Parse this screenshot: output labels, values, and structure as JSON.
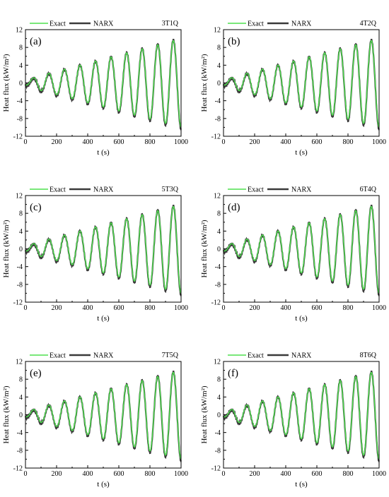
{
  "legend": {
    "exact_label": "Exact",
    "narx_label": "NARX",
    "exact_color": "#4fe04f",
    "narx_color": "#3a3a3a"
  },
  "chart_data": [
    {
      "type": "line",
      "panel_label": "(a)",
      "case": "3T1Q",
      "xlabel": "t (s)",
      "ylabel": "Heat flux (kW/m²)",
      "xlim": [
        0,
        1000
      ],
      "ylim": [
        -12,
        12
      ],
      "xticks": [
        0,
        200,
        400,
        600,
        800,
        1000
      ],
      "yticks": [
        -12,
        -8,
        -4,
        0,
        4,
        8,
        12
      ],
      "series": [
        {
          "name": "Exact"
        },
        {
          "name": "NARX"
        }
      ],
      "signal": {
        "period_s": 100,
        "amplitude_start": 0.8,
        "amplitude_end": 10.0,
        "offset": 0
      }
    },
    {
      "type": "line",
      "panel_label": "(b)",
      "case": "4T2Q",
      "xlabel": "t (s)",
      "ylabel": "Heat flux (kW/m²)",
      "xlim": [
        0,
        1000
      ],
      "ylim": [
        -12,
        12
      ],
      "xticks": [
        0,
        200,
        400,
        600,
        800,
        1000
      ],
      "yticks": [
        -12,
        -8,
        -4,
        0,
        4,
        8,
        12
      ],
      "series": [
        {
          "name": "Exact"
        },
        {
          "name": "NARX"
        }
      ],
      "signal": {
        "period_s": 100,
        "amplitude_start": 0.8,
        "amplitude_end": 10.0,
        "offset": 0
      }
    },
    {
      "type": "line",
      "panel_label": "(c)",
      "case": "5T3Q",
      "xlabel": "t (s)",
      "ylabel": "Heat flux (kW/m²)",
      "xlim": [
        0,
        1000
      ],
      "ylim": [
        -12,
        12
      ],
      "xticks": [
        0,
        200,
        400,
        600,
        800,
        1000
      ],
      "yticks": [
        -12,
        -8,
        -4,
        0,
        4,
        8,
        12
      ],
      "series": [
        {
          "name": "Exact"
        },
        {
          "name": "NARX"
        }
      ],
      "signal": {
        "period_s": 100,
        "amplitude_start": 0.8,
        "amplitude_end": 10.0,
        "offset": 0
      }
    },
    {
      "type": "line",
      "panel_label": "(d)",
      "case": "6T4Q",
      "xlabel": "t (s)",
      "ylabel": "Heat flux (kW/m²)",
      "xlim": [
        0,
        1000
      ],
      "ylim": [
        -12,
        12
      ],
      "xticks": [
        0,
        200,
        400,
        600,
        800,
        1000
      ],
      "yticks": [
        -12,
        -8,
        -4,
        0,
        4,
        8,
        12
      ],
      "series": [
        {
          "name": "Exact"
        },
        {
          "name": "NARX"
        }
      ],
      "signal": {
        "period_s": 100,
        "amplitude_start": 0.8,
        "amplitude_end": 10.0,
        "offset": 0
      }
    },
    {
      "type": "line",
      "panel_label": "(e)",
      "case": "7T5Q",
      "xlabel": "t (s)",
      "ylabel": "Heat flux (kW/m²)",
      "xlim": [
        0,
        1000
      ],
      "ylim": [
        -12,
        12
      ],
      "xticks": [
        0,
        200,
        400,
        600,
        800,
        1000
      ],
      "yticks": [
        -12,
        -8,
        -4,
        0,
        4,
        8,
        12
      ],
      "series": [
        {
          "name": "Exact"
        },
        {
          "name": "NARX"
        }
      ],
      "signal": {
        "period_s": 100,
        "amplitude_start": 0.8,
        "amplitude_end": 10.0,
        "offset": 0
      }
    },
    {
      "type": "line",
      "panel_label": "(f)",
      "case": "8T6Q",
      "xlabel": "t (s)",
      "ylabel": "Heat flux (kW/m²)",
      "xlim": [
        0,
        1000
      ],
      "ylim": [
        -12,
        12
      ],
      "xticks": [
        0,
        200,
        400,
        600,
        800,
        1000
      ],
      "yticks": [
        -12,
        -8,
        -4,
        0,
        4,
        8,
        12
      ],
      "series": [
        {
          "name": "Exact"
        },
        {
          "name": "NARX"
        }
      ],
      "signal": {
        "period_s": 100,
        "amplitude_start": 0.8,
        "amplitude_end": 10.0,
        "offset": 0
      }
    }
  ]
}
